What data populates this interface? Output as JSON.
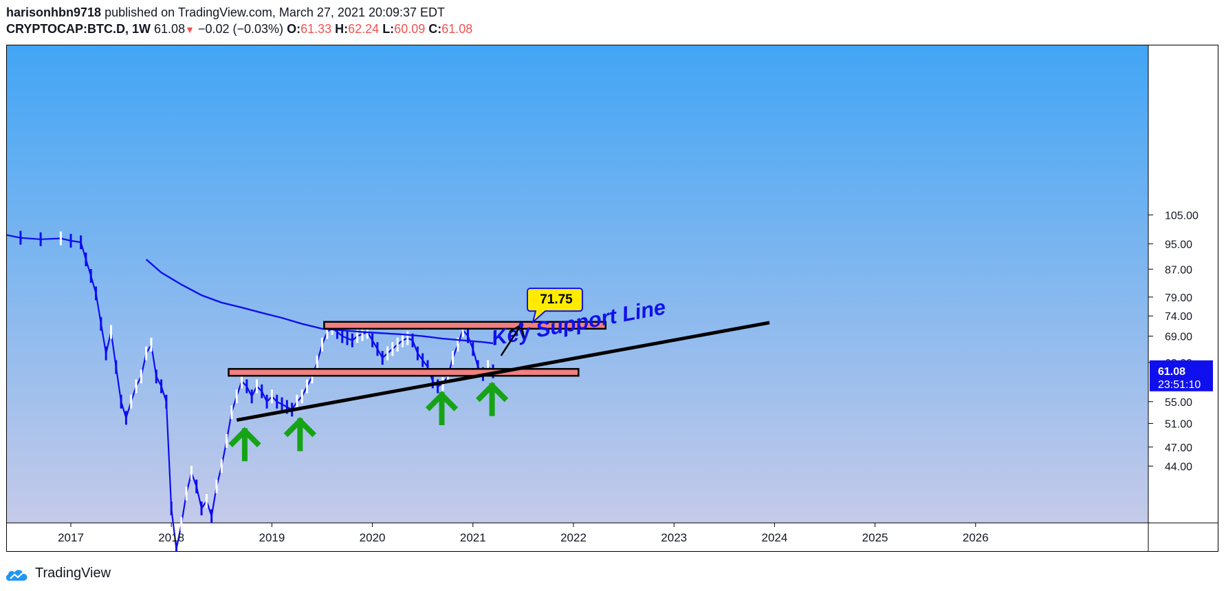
{
  "header": {
    "author": "harisonhbn9718",
    "published_text": "published on TradingView.com, March 27, 2021 20:09:37 EDT",
    "symbol": "CRYPTOCAP:BTC.D, 1W",
    "last": "61.08",
    "change": "−0.02 (−0.03%)",
    "o_label": "O:",
    "o_value": "61.33",
    "h_label": "H:",
    "h_value": "62.24",
    "l_label": "L:",
    "l_value": "60.09",
    "c_label": "C:",
    "c_value": "61.08"
  },
  "footer": {
    "brand": "TradingView",
    "icon": "tradingview-logo-icon"
  },
  "colors": {
    "bg_top": "#42a5f5",
    "bg_bottom": "#c5cae9",
    "candle_up": "#ffffff",
    "candle_down": "#0d0df0",
    "ma": "#1010ee",
    "zone_fill": "#f08080",
    "support": "#000000",
    "arrows": "#16a316",
    "label_bg": "#ffeb00",
    "price_tag": "#1010ee"
  },
  "chart_data": {
    "type": "line",
    "symbol": "CRYPTOCAP:BTC.D",
    "interval": "1W",
    "x_axis": {
      "ticks": [
        "2017",
        "2018",
        "2019",
        "2020",
        "2021",
        "2022",
        "2023",
        "2024",
        "2025",
        "2026"
      ]
    },
    "y_axis": {
      "ticks": [
        "105.00",
        "95.00",
        "87.00",
        "79.00",
        "74.00",
        "69.00",
        "63.00",
        "55.00",
        "51.00",
        "47.00",
        "44.00"
      ],
      "scale": "log"
    },
    "series": [
      {
        "values_x": [
          2016.28,
          2016.5,
          2016.7,
          2016.9,
          2017.0,
          2017.1,
          2017.15,
          2017.2,
          2017.25,
          2017.3,
          2017.35,
          2017.4,
          2017.45,
          2017.5,
          2017.55,
          2017.6,
          2017.65,
          2017.7,
          2017.75,
          2017.8,
          2017.85,
          2017.9,
          2017.95,
          2018.0,
          2018.05,
          2018.1,
          2018.15,
          2018.2,
          2018.25,
          2018.3,
          2018.35,
          2018.4,
          2018.45,
          2018.5,
          2018.55,
          2018.6,
          2018.65,
          2018.7,
          2018.75,
          2018.8,
          2018.85,
          2018.9,
          2018.95,
          2019.0,
          2019.05,
          2019.1,
          2019.15,
          2019.2,
          2019.25,
          2019.3,
          2019.35,
          2019.4,
          2019.45,
          2019.5,
          2019.55,
          2019.6,
          2019.65,
          2019.7,
          2019.75,
          2019.8,
          2019.85,
          2019.9,
          2019.95,
          2020.0,
          2020.05,
          2020.1,
          2020.15,
          2020.2,
          2020.25,
          2020.3,
          2020.35,
          2020.4,
          2020.45,
          2020.5,
          2020.55,
          2020.6,
          2020.65,
          2020.7,
          2020.75,
          2020.8,
          2020.85,
          2020.9,
          2020.95,
          2021.0,
          2021.05,
          2021.1,
          2021.15,
          2021.2
        ],
        "values_y": [
          98.5,
          97.0,
          96.5,
          96.8,
          96.0,
          95.5,
          90.0,
          85.0,
          80.0,
          72.0,
          65.0,
          70.0,
          62.0,
          55.0,
          52.0,
          55.0,
          58.0,
          60.0,
          65.0,
          67.0,
          60.0,
          58.0,
          55.0,
          38.0,
          33.0,
          36.0,
          40.0,
          43.0,
          41.0,
          38.0,
          39.0,
          37.0,
          41.0,
          44.0,
          48.0,
          53.0,
          56.0,
          59.0,
          58.0,
          56.0,
          58.0,
          57.0,
          55.0,
          56.0,
          55.0,
          54.5,
          54.0,
          53.5,
          55.0,
          56.0,
          58.0,
          60.0,
          63.0,
          67.0,
          70.0,
          71.0,
          70.0,
          69.0,
          68.5,
          68.0,
          69.0,
          69.5,
          70.0,
          68.0,
          66.0,
          64.0,
          65.0,
          66.0,
          67.0,
          68.0,
          68.5,
          68.0,
          65.0,
          63.5,
          62.0,
          59.0,
          58.0,
          58.5,
          60.0,
          64.0,
          67.0,
          70.5,
          69.0,
          66.0,
          62.0,
          60.5,
          62.0,
          61.08
        ]
      },
      {
        "name": "",
        "values_x": [
          2017.75,
          2017.9,
          2018.1,
          2018.3,
          2018.5,
          2018.7,
          2018.9,
          2019.1,
          2019.3,
          2019.5,
          2019.7,
          2019.9,
          2020.1,
          2020.3,
          2020.5,
          2020.7,
          2020.9,
          2021.1,
          2021.2
        ],
        "values_y": [
          90.0,
          86.0,
          82.5,
          79.5,
          77.5,
          76.2,
          74.8,
          73.5,
          72.0,
          70.8,
          70.4,
          70.0,
          69.7,
          69.4,
          69.0,
          68.4,
          68.0,
          67.6,
          67.3
        ]
      }
    ],
    "last_price_label": {
      "price": "61.08",
      "countdown": "23:51:10"
    },
    "annotations": {
      "resistance_zone": {
        "x_from": 2019.52,
        "x_to": 2022.32,
        "y_low": 71.5,
        "y_high": 72.5
      },
      "support_zone": {
        "x_from": 2018.57,
        "x_to": 2022.05,
        "y_low": 60.2,
        "y_high": 61.6
      },
      "support_line": {
        "x_from": 2018.65,
        "y_from": 51.6,
        "x_to": 2023.95,
        "y_to": 72.3,
        "label": "Key Support Line"
      },
      "target": {
        "from_x": 2021.28,
        "from_y": 64.5,
        "to_x": 2021.48,
        "to_y": 71.75,
        "label": "71.75"
      },
      "up_arrows_x": [
        2018.73,
        2019.28,
        2020.69,
        2021.19
      ]
    }
  }
}
